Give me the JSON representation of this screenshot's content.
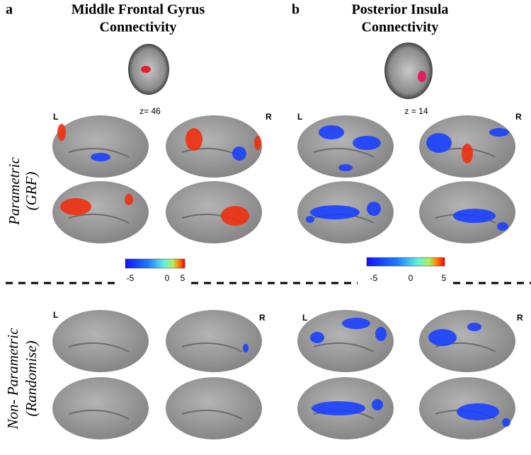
{
  "panels": [
    {
      "label": "a",
      "title": [
        "Middle Frontal Gyrus",
        "Connectivity"
      ],
      "slice": "z= 46",
      "left": "L",
      "right": "R",
      "colorbar": [
        "-5",
        "0",
        "5"
      ]
    },
    {
      "label": "b",
      "title": [
        "Posterior Insula",
        "Connectivity"
      ],
      "slice": "z = 14",
      "left": "L",
      "right": "R",
      "colorbar": [
        "-5",
        "0",
        "5"
      ]
    }
  ],
  "rows": [
    {
      "label": [
        "Parametric",
        "(GRF)"
      ]
    },
    {
      "label": [
        "Non- Parametric",
        "(Randomise)"
      ]
    }
  ]
}
